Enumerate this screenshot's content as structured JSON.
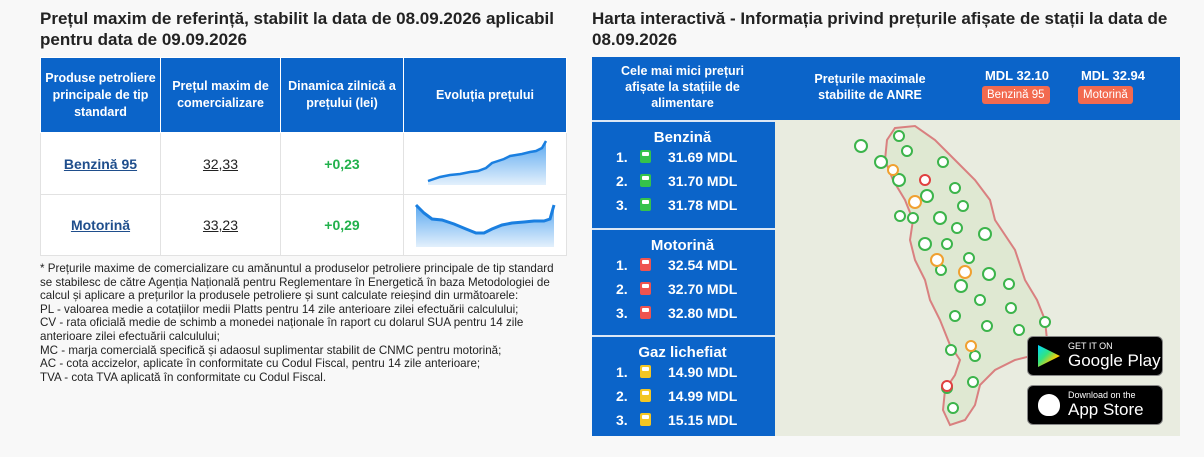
{
  "left": {
    "title": "Prețul maxim de referință, stabilit la data de 08.09.2026 aplicabil pentru data de 09.09.2026",
    "table": {
      "headers": [
        "Produse petroliere principale de tip standard",
        "Prețul maxim de comercializare",
        "Dinamica zilnică a prețului (lei)",
        "Evoluția prețului"
      ],
      "rows": [
        [
          "Benzină 95",
          "32,33",
          "+0,23"
        ],
        [
          "Motorină",
          "33,23",
          "+0,29"
        ]
      ]
    },
    "notes": [
      "* Prețurile maxime de comercializare cu amănuntul a produselor petroliere principale de tip standard se stabilesc de către Agenția Națională pentru Reglementare în Energetică în baza Metodologiei de calcul și aplicare a prețurilor la produsele petroliere și sunt calculate reieșind din următoarele:",
      "PL - valoarea medie a cotațiilor medii Platts pentru 14 zile anterioare zilei efectuării calculului;",
      "CV - rata oficială medie de schimb a monedei naționale în raport cu dolarul SUA pentru 14 zile anterioare zilei efectuării calculului;",
      "MC - marja comercială specifică și adaosul suplimentar stabilit de CNMC pentru motorină;",
      "AC - cota accizelor, aplicate în conformitate cu Codul Fiscal, pentru 14 zile anterioare;",
      "TVA - cota TVA aplicată în conformitate cu Codul Fiscal."
    ]
  },
  "right": {
    "title": "Harta interactivă - Informația privind prețurile afișate de stații la data de 08.09.2026",
    "lowest_label": "Cele mai mici prețuri afișate la stațiile de alimentare",
    "max_label": "Prețurile maximale stabilite de ANRE",
    "max_prices": [
      {
        "price": "MDL 32.10",
        "product": "Benzină 95"
      },
      {
        "price": "MDL 32.94",
        "product": "Motorină"
      }
    ],
    "groups": [
      {
        "name": "Benzină",
        "items": [
          {
            "rank": "1.",
            "price": "31.69 MDL"
          },
          {
            "rank": "2.",
            "price": "31.70 MDL"
          },
          {
            "rank": "3.",
            "price": "31.78 MDL"
          }
        ]
      },
      {
        "name": "Motorină",
        "items": [
          {
            "rank": "1.",
            "price": "32.54 MDL"
          },
          {
            "rank": "2.",
            "price": "32.70 MDL"
          },
          {
            "rank": "3.",
            "price": "32.80 MDL"
          }
        ]
      },
      {
        "name": "Gaz lichefiat",
        "items": [
          {
            "rank": "1.",
            "price": "14.90 MDL"
          },
          {
            "rank": "2.",
            "price": "14.99 MDL"
          },
          {
            "rank": "3.",
            "price": "15.15 MDL"
          }
        ]
      }
    ],
    "stores": [
      {
        "small": "GET IT ON",
        "big": "Google Play"
      },
      {
        "small": "Download on the",
        "big": "App Store"
      }
    ]
  }
}
